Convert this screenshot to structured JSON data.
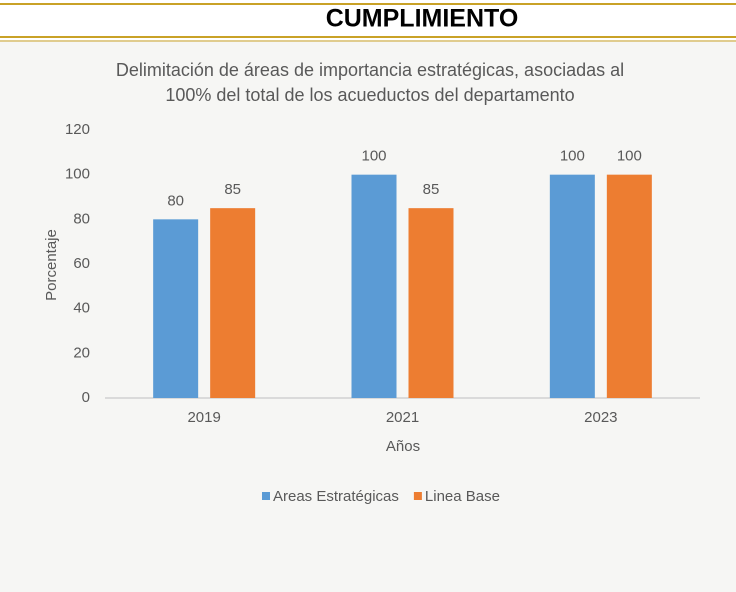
{
  "header": {
    "title": "CUMPLIMIENTO"
  },
  "chart_data": {
    "type": "bar",
    "title": [
      "Delimitación  de  áreas de importancia  estratégicas,  asociadas   al",
      "100% del total de los acueductos  del departamento"
    ],
    "x_label": "Años",
    "y_label": "Porcentaje",
    "categories": [
      "2019",
      "2021",
      "2023"
    ],
    "series": [
      {
        "name": "Areas Estratégicas",
        "color": "#5b9bd5",
        "values": [
          80,
          100,
          100
        ]
      },
      {
        "name": "Linea Base",
        "color": "#ed7d31",
        "values": [
          85,
          85,
          100
        ]
      }
    ],
    "ylim": [
      0,
      120
    ],
    "yticks": [
      0,
      20,
      40,
      60,
      80,
      100,
      120
    ],
    "grid": false,
    "legend": "bottom"
  }
}
